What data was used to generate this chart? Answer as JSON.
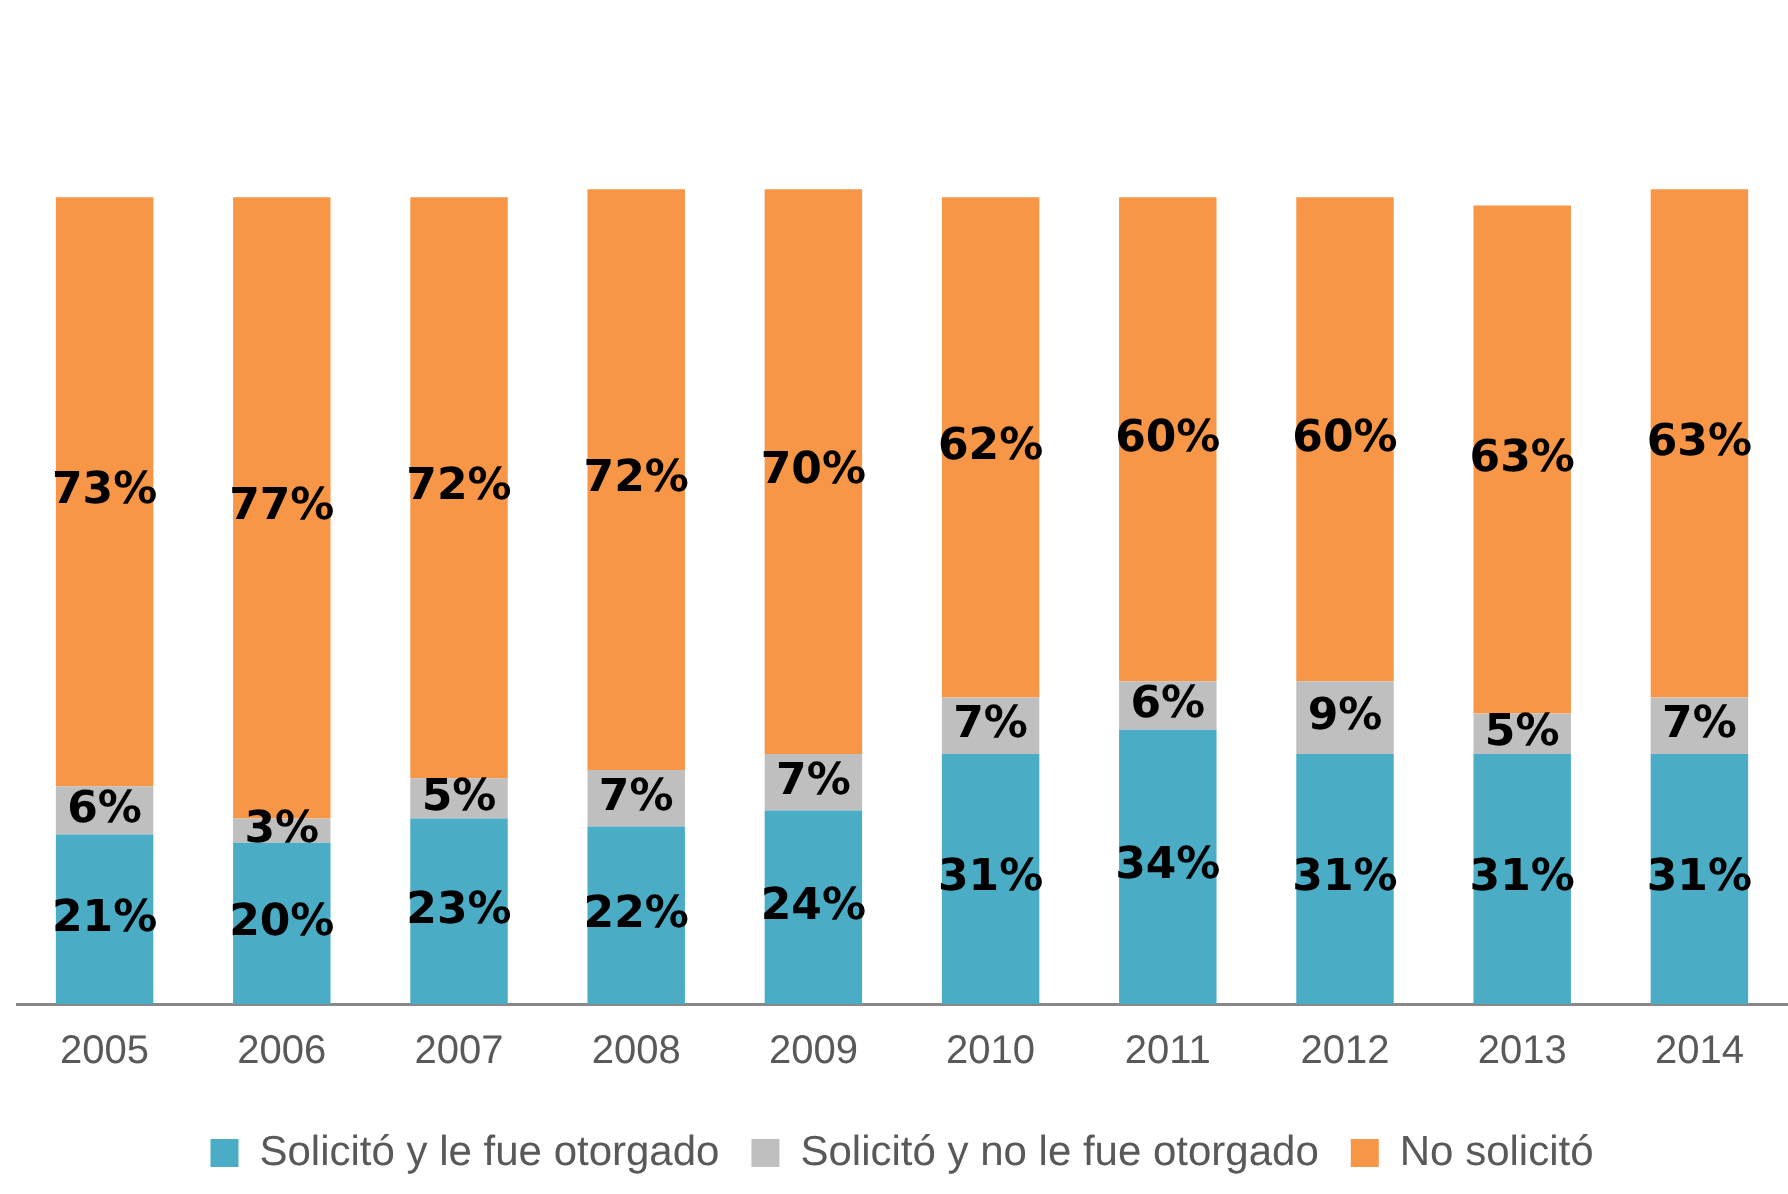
{
  "chart_data": {
    "type": "bar",
    "stacked": true,
    "legend": "bottom",
    "grid": false,
    "categories": [
      "2005",
      "2006",
      "2007",
      "2008",
      "2009",
      "2010",
      "2011",
      "2012",
      "2013",
      "2014"
    ],
    "series": [
      {
        "name": "Solicitó y le fue otorgado",
        "color": "#4bacc6",
        "values": [
          21,
          20,
          23,
          22,
          24,
          31,
          34,
          31,
          31,
          31
        ],
        "value_labels": [
          "21%",
          "20%",
          "23%",
          "22%",
          "24%",
          "31%",
          "34%",
          "31%",
          "31%",
          "31%"
        ]
      },
      {
        "name": "Solicitó y no le fue otorgado",
        "color": "#bfbfbf",
        "values": [
          6,
          3,
          5,
          7,
          7,
          7,
          6,
          9,
          5,
          7
        ],
        "value_labels": [
          "6%",
          "3%",
          "5%",
          "7%",
          "7%",
          "7%",
          "6%",
          "9%",
          "5%",
          "7%"
        ]
      },
      {
        "name": "No solicitó",
        "color": "#f79646",
        "values": [
          73,
          77,
          72,
          72,
          70,
          62,
          60,
          60,
          63,
          63
        ],
        "value_labels": [
          "73%",
          "77%",
          "72%",
          "72%",
          "70%",
          "62%",
          "60%",
          "60%",
          "63%",
          "63%"
        ]
      }
    ]
  }
}
